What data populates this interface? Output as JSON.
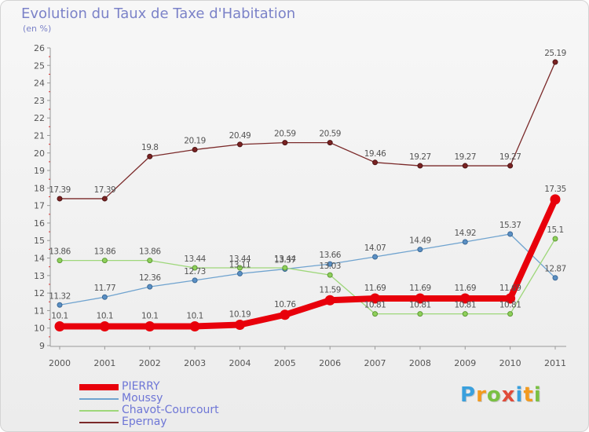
{
  "chart_data": {
    "type": "line",
    "title": "Evolution du Taux de Taxe d'Habitation",
    "subtitle": "(en %)",
    "x": [
      "2000",
      "2001",
      "2002",
      "2003",
      "2004",
      "2005",
      "2006",
      "2007",
      "2008",
      "2009",
      "2010",
      "2011"
    ],
    "y_ticks": [
      "9",
      "10",
      "11",
      "12",
      "13",
      "14",
      "15",
      "16",
      "17",
      "18",
      "19",
      "20",
      "21",
      "22",
      "23",
      "24",
      "25",
      "26"
    ],
    "ylim": [
      9,
      26
    ],
    "grid": false,
    "legend_position": "bottom-left",
    "series": [
      {
        "name": "PIERRY",
        "color": "#e8000b",
        "values": [
          10.1,
          10.1,
          10.1,
          10.1,
          10.19,
          10.76,
          11.59,
          11.69,
          11.69,
          11.69,
          11.69,
          17.35
        ]
      },
      {
        "name": "Moussy",
        "color": "#6fa3cf",
        "values": [
          11.32,
          11.77,
          12.36,
          12.73,
          13.11,
          13.37,
          13.66,
          14.07,
          14.49,
          14.92,
          15.37,
          12.87
        ]
      },
      {
        "name": "Chavot-Courcourt",
        "color": "#9ed77a",
        "values": [
          13.86,
          13.86,
          13.86,
          13.44,
          13.44,
          13.44,
          13.03,
          10.81,
          10.81,
          10.81,
          10.81,
          15.1
        ]
      },
      {
        "name": "Epernay",
        "color": "#7b2a2a",
        "values": [
          17.39,
          17.39,
          19.8,
          20.19,
          20.49,
          20.59,
          20.59,
          19.46,
          19.27,
          19.27,
          19.27,
          25.19
        ]
      }
    ],
    "data_labels": {
      "PIERRY": [
        "10.1",
        "10.1",
        "10.1",
        "10.1",
        "10.19",
        "10.76",
        "11.59",
        "11.69",
        "11.69",
        "11.69",
        "11.69",
        "17.35"
      ],
      "Moussy": [
        "11.32",
        "11.77",
        "12.36",
        "12.73",
        "13.11",
        "13.37",
        "13.66",
        "14.07",
        "14.49",
        "14.92",
        "15.37",
        "12.87"
      ],
      "Chavot-Courcourt": [
        "13.86",
        "13.86",
        "13.86",
        "13.44",
        "13.44",
        "13.44",
        "13.03",
        "10.81",
        "10.81",
        "10.81",
        "10.81",
        "15.1"
      ],
      "Epernay": [
        "17.39",
        "17.39",
        "19.8",
        "20.19",
        "20.49",
        "20.59",
        "20.59",
        "19.46",
        "19.27",
        "19.27",
        "19.27",
        "25.19"
      ]
    }
  },
  "logo": {
    "text": "Proxiti",
    "letters": [
      "P",
      "r",
      "o",
      "x",
      "i",
      "t",
      "i"
    ]
  }
}
